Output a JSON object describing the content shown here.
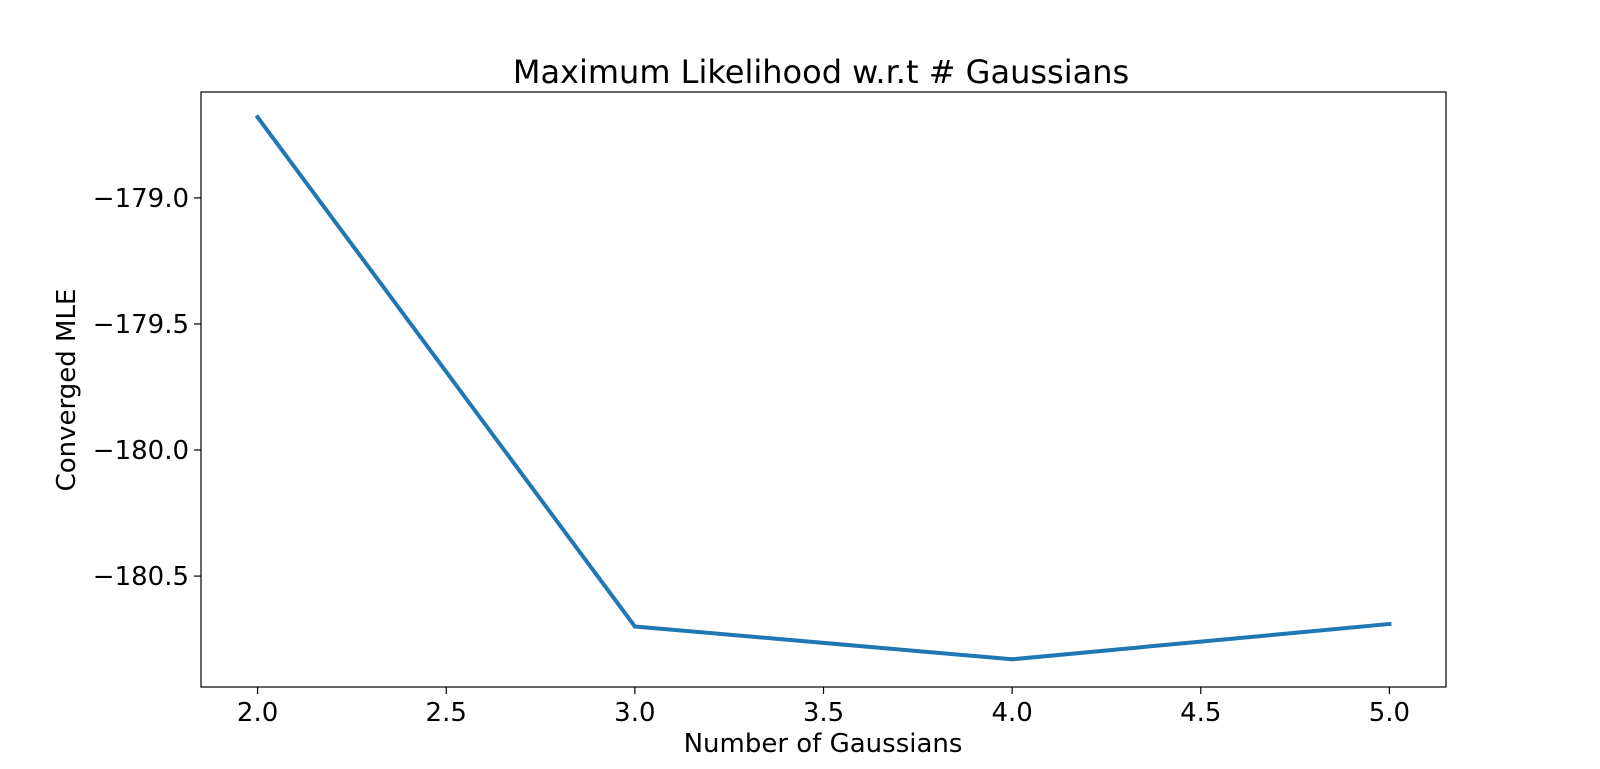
{
  "chart_data": {
    "type": "line",
    "title": "Maximum Likelihood w.r.t # Gaussians",
    "xlabel": "Number of Gaussians",
    "ylabel": "Converged MLE",
    "xlim": [
      1.85,
      5.15
    ],
    "ylim": [
      -180.94,
      -178.58
    ],
    "x_ticks": [
      2.0,
      2.5,
      3.0,
      3.5,
      4.0,
      4.5,
      5.0
    ],
    "x_tick_labels": [
      "2.0",
      "2.5",
      "3.0",
      "3.5",
      "4.0",
      "4.5",
      "5.0"
    ],
    "y_ticks": [
      -179.0,
      -179.5,
      -180.0,
      -180.5
    ],
    "y_tick_labels": [
      "−179.0",
      "−179.5",
      "−180.0",
      "−180.5"
    ],
    "grid": false,
    "series": [
      {
        "name": "Converged MLE",
        "color": "#1f77b4",
        "x": [
          2,
          3,
          4,
          5
        ],
        "y": [
          -178.68,
          -180.7,
          -180.83,
          -180.69
        ]
      }
    ]
  }
}
